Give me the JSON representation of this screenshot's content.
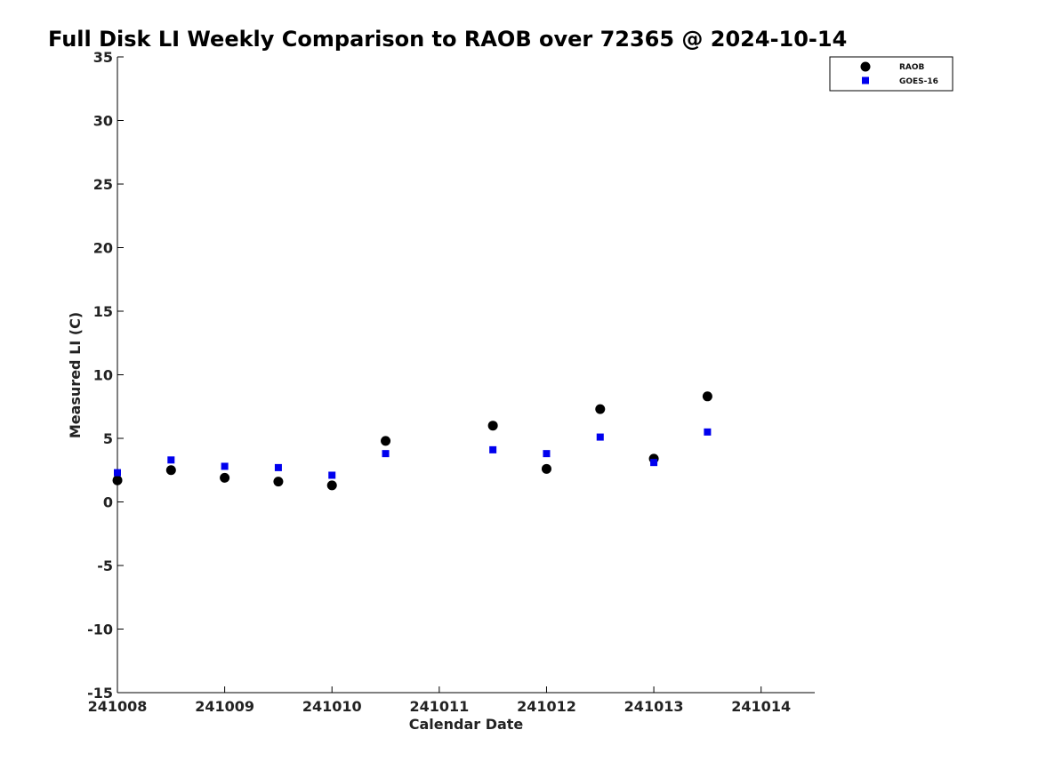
{
  "chart_data": {
    "type": "scatter",
    "title": "Full Disk LI Weekly Comparison to RAOB over 72365 @ 2024-10-14",
    "xlabel": "Calendar Date",
    "ylabel": "Measured LI (C)",
    "xlim": [
      0,
      6.5
    ],
    "ylim": [
      -15,
      35
    ],
    "x_ticks": [
      0,
      1,
      2,
      3,
      4,
      5,
      6
    ],
    "x_tick_labels": [
      "241008",
      "241009",
      "241010",
      "241011",
      "241012",
      "241013",
      "241014"
    ],
    "y_ticks": [
      -15,
      -10,
      -5,
      0,
      5,
      10,
      15,
      20,
      25,
      30,
      35
    ],
    "y_tick_labels": [
      "-15",
      "-10",
      "-5",
      "0",
      "5",
      "10",
      "15",
      "20",
      "25",
      "30",
      "35"
    ],
    "grid": false,
    "legend_position": "top-right",
    "series": [
      {
        "name": "RAOB",
        "marker": "circle",
        "color": "#000000",
        "x": [
          0,
          0.5,
          1,
          1.5,
          2,
          2.5,
          3.5,
          4,
          4.5,
          5,
          5.5
        ],
        "y": [
          1.7,
          2.5,
          1.9,
          1.6,
          1.3,
          4.8,
          6.0,
          2.6,
          7.3,
          3.4,
          8.3
        ]
      },
      {
        "name": "GOES-16",
        "marker": "square",
        "color": "#0000ee",
        "x": [
          0,
          0.5,
          1,
          1.5,
          2,
          2.5,
          3.5,
          4,
          4.5,
          5,
          5.5
        ],
        "y": [
          2.3,
          3.3,
          2.8,
          2.7,
          2.1,
          3.8,
          4.1,
          3.8,
          5.1,
          3.1,
          5.5
        ]
      }
    ]
  }
}
